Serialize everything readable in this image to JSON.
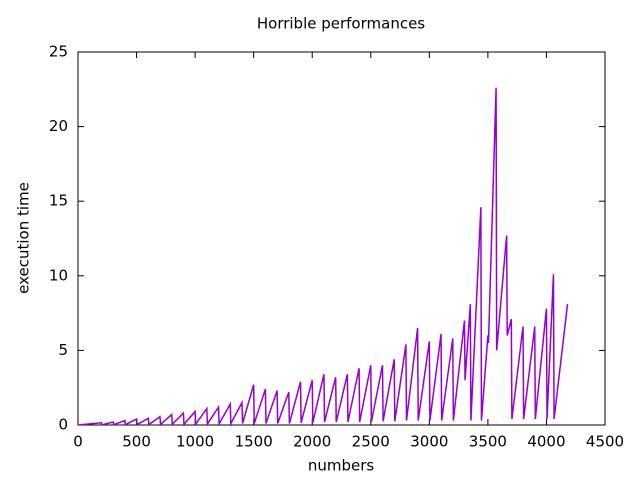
{
  "chart_data": {
    "type": "line",
    "title": "Horrible performances",
    "x_label": "numbers",
    "y_label": "execution time",
    "x": [
      0,
      200,
      205,
      300,
      305,
      400,
      405,
      500,
      505,
      600,
      605,
      700,
      705,
      800,
      805,
      900,
      905,
      1000,
      1005,
      1100,
      1105,
      1200,
      1205,
      1300,
      1305,
      1400,
      1405,
      1500,
      1505,
      1600,
      1605,
      1700,
      1705,
      1800,
      1805,
      1900,
      1905,
      2000,
      2005,
      2100,
      2105,
      2200,
      2205,
      2300,
      2305,
      2400,
      2405,
      2500,
      2505,
      2600,
      2605,
      2700,
      2705,
      2800,
      2805,
      2900,
      2905,
      3000,
      3005,
      3100,
      3105,
      3200,
      3205,
      3300,
      3305,
      3350,
      3355,
      3440,
      3445,
      3500,
      3505,
      3570,
      3575,
      3660,
      3665,
      3700,
      3705,
      3800,
      3805,
      3900,
      3905,
      4000,
      4005,
      4060,
      4065,
      4180
    ],
    "series": [
      {
        "color": "#9400d3",
        "values": [
          0,
          0.15,
          0.01,
          0.2,
          0.02,
          0.3,
          0.02,
          0.4,
          0.03,
          0.45,
          0.03,
          0.55,
          0.04,
          0.7,
          0.05,
          0.8,
          0.05,
          0.9,
          0.06,
          1.1,
          0.07,
          1.2,
          0.08,
          1.4,
          0.09,
          1.5,
          0.1,
          2.7,
          0.1,
          2.4,
          0.1,
          2.3,
          0.1,
          2.2,
          0.1,
          2.9,
          0.15,
          3.0,
          0.15,
          3.4,
          0.2,
          3.2,
          0.2,
          3.4,
          0.2,
          3.8,
          0.2,
          4.0,
          0.2,
          4.0,
          0.25,
          4.4,
          0.25,
          5.4,
          0.3,
          6.5,
          0.3,
          5.6,
          0.3,
          6.1,
          0.3,
          5.8,
          0.3,
          7.0,
          3.0,
          8.1,
          0.3,
          14.6,
          0.3,
          6.0,
          5.5,
          22.6,
          5.0,
          12.7,
          6.0,
          7.1,
          0.4,
          6.6,
          0.4,
          6.6,
          0.4,
          7.8,
          0.4,
          10.1,
          0.4,
          8.1
        ]
      }
    ],
    "xlim": [
      0,
      4500
    ],
    "xticks": [
      0,
      500,
      1000,
      1500,
      2000,
      2500,
      3000,
      3500,
      4000,
      4500
    ],
    "ylim": [
      0,
      25
    ],
    "yticks": [
      0,
      5,
      10,
      15,
      20,
      25
    ],
    "grid": false
  }
}
